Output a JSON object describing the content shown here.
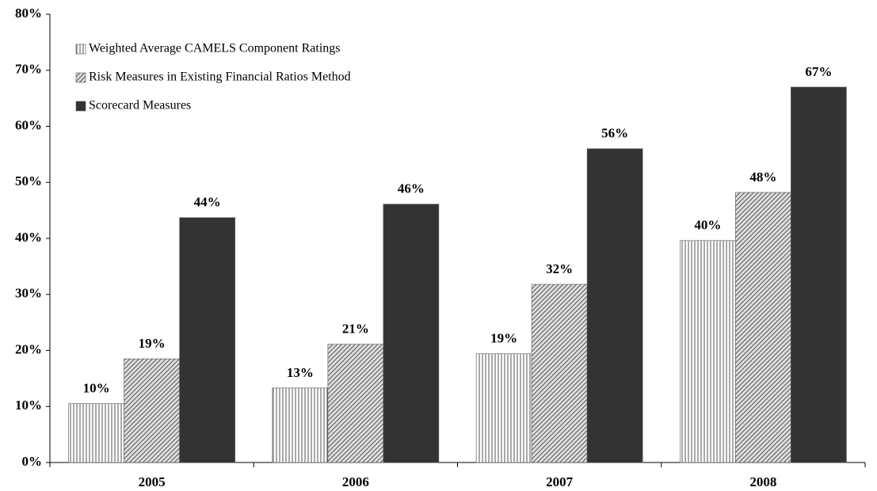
{
  "chart_data": {
    "type": "bar",
    "categories": [
      "2005",
      "2006",
      "2007",
      "2008"
    ],
    "series": [
      {
        "name": "Weighted Average CAMELS Component Ratings",
        "color": "#555555",
        "pattern": "vertical",
        "values": [
          10.5,
          13.3,
          19.4,
          39.6
        ],
        "value_labels": [
          "10%",
          "13%",
          "19%",
          "40%"
        ]
      },
      {
        "name": "Risk Measures in Existing Financial Ratios Method",
        "color": "#555555",
        "pattern": "diagonal",
        "values": [
          18.5,
          21.1,
          31.8,
          48.2
        ],
        "value_labels": [
          "19%",
          "21%",
          "32%",
          "48%"
        ]
      },
      {
        "name": "Scorecard Measures",
        "color": "#333333",
        "pattern": "solid",
        "values": [
          43.7,
          46.1,
          56.0,
          67.0
        ],
        "value_labels": [
          "44%",
          "46%",
          "56%",
          "67%"
        ]
      }
    ],
    "ylim": [
      0,
      80
    ],
    "yticks": [
      {
        "value": 0,
        "label": "0%"
      },
      {
        "value": 10,
        "label": "10%"
      },
      {
        "value": 20,
        "label": "20%"
      },
      {
        "value": 30,
        "label": "30%"
      },
      {
        "value": 40,
        "label": "40%"
      },
      {
        "value": 50,
        "label": "50%"
      },
      {
        "value": 60,
        "label": "60%"
      },
      {
        "value": 70,
        "label": "70%"
      },
      {
        "value": 80,
        "label": "80%"
      }
    ],
    "grid": false,
    "legend": "top-left"
  }
}
